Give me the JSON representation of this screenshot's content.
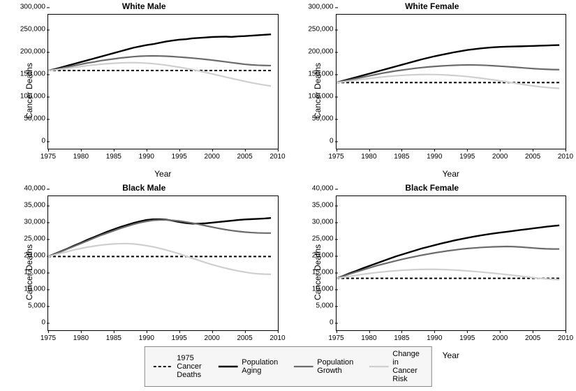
{
  "layout": {
    "rows": 2,
    "cols": 2,
    "background_color": "#ffffff",
    "title_fontsize": 12,
    "axis_label_fontsize": 12,
    "tick_fontsize": 10,
    "legend_fontsize": 11
  },
  "x": {
    "label": "Year",
    "lim": [
      1975,
      2010
    ],
    "ticks": [
      1975,
      1980,
      1985,
      1990,
      1995,
      2000,
      2005,
      2010
    ],
    "series_years": [
      1975,
      1976,
      1977,
      1978,
      1979,
      1980,
      1981,
      1982,
      1983,
      1984,
      1985,
      1986,
      1987,
      1988,
      1989,
      1990,
      1991,
      1992,
      1993,
      1994,
      1995,
      1996,
      1997,
      1998,
      1999,
      2000,
      2001,
      2002,
      2003,
      2004,
      2005,
      2006,
      2007,
      2008,
      2009
    ]
  },
  "series_defs": [
    {
      "key": "baseline",
      "label": "1975 Cancer Deaths",
      "color": "#000000",
      "width": 2,
      "dash": "4 3"
    },
    {
      "key": "aging",
      "label": "Population Aging",
      "color": "#000000",
      "width": 2.4,
      "dash": null
    },
    {
      "key": "growth",
      "label": "Population Growth",
      "color": "#6b6b6b",
      "width": 2.2,
      "dash": null
    },
    {
      "key": "risk_change",
      "label": "Change in Cancer Risk",
      "color": "#cfcfcf",
      "width": 2.2,
      "dash": null
    }
  ],
  "panels": [
    {
      "title": "White Male",
      "ylabel": "Cancer Deaths",
      "ylim": [
        0,
        300000
      ],
      "ytick_step": 50000,
      "series": {
        "baseline": 175000,
        "aging": [
          175000,
          178000,
          182000,
          186000,
          190000,
          194000,
          198000,
          202000,
          206000,
          210000,
          214000,
          218000,
          222000,
          226000,
          229000,
          232000,
          234000,
          237000,
          240000,
          242000,
          244000,
          245000,
          247000,
          248000,
          249000,
          250000,
          250500,
          250800,
          250200,
          251500,
          252000,
          253000,
          254000,
          255000,
          256000
        ],
        "growth": [
          175000,
          177000,
          180000,
          183000,
          186000,
          189000,
          192000,
          194000,
          197000,
          199000,
          201000,
          203000,
          204500,
          206000,
          207000,
          207500,
          207800,
          207500,
          207000,
          206200,
          205200,
          204100,
          202800,
          201500,
          200000,
          198300,
          196500,
          194600,
          192700,
          190800,
          189000,
          187700,
          186800,
          186300,
          186000
        ],
        "risk_change": [
          175000,
          176200,
          178000,
          180000,
          182000,
          184000,
          186000,
          187500,
          189000,
          190200,
          191200,
          192000,
          192500,
          192700,
          192300,
          191500,
          190300,
          188800,
          187000,
          184800,
          182400,
          179800,
          177000,
          174000,
          170800,
          167500,
          164100,
          160700,
          157300,
          154000,
          150800,
          147800,
          145000,
          142500,
          140200
        ]
      }
    },
    {
      "title": "White Female",
      "ylabel": "Cancer Deaths",
      "ylim": [
        0,
        300000
      ],
      "ytick_step": 50000,
      "series": {
        "baseline": 148000,
        "aging": [
          148000,
          152000,
          156000,
          160000,
          164000,
          168000,
          172000,
          176000,
          180000,
          184000,
          188000,
          192000,
          196000,
          200000,
          203500,
          207000,
          210000,
          213000,
          216000,
          218500,
          221000,
          222800,
          224500,
          225800,
          227000,
          227800,
          228400,
          228800,
          229100,
          229600,
          230000,
          230500,
          231000,
          231600,
          232000
        ],
        "growth": [
          148000,
          151000,
          154000,
          157000,
          160000,
          163000,
          166000,
          169000,
          171500,
          174000,
          176000,
          178000,
          180000,
          181500,
          183000,
          184200,
          185200,
          186000,
          186700,
          187200,
          187500,
          187400,
          187000,
          186400,
          185600,
          184700,
          183700,
          182600,
          181500,
          180400,
          179300,
          178400,
          177700,
          177200,
          177000
        ],
        "risk_change": [
          148000,
          149500,
          151500,
          153500,
          155500,
          157300,
          159000,
          160500,
          162000,
          163200,
          164200,
          165000,
          165600,
          166000,
          166100,
          165900,
          165500,
          164800,
          163900,
          162800,
          161400,
          159800,
          158000,
          156000,
          153900,
          151700,
          149400,
          147100,
          144800,
          142600,
          140500,
          138700,
          137200,
          136000,
          135000
        ]
      }
    },
    {
      "title": "Black Male",
      "ylabel": "Cancer Deaths",
      "ylim": [
        0,
        40000
      ],
      "ytick_step": 5000,
      "series": {
        "baseline": 22000,
        "aging": [
          22000,
          22800,
          23600,
          24400,
          25300,
          26100,
          27000,
          27800,
          28600,
          29400,
          30100,
          30800,
          31400,
          32000,
          32500,
          32900,
          33100,
          33100,
          33000,
          32700,
          32300,
          32000,
          31800,
          31800,
          31900,
          32100,
          32300,
          32500,
          32700,
          32900,
          33050,
          33150,
          33250,
          33350,
          33500
        ],
        "growth": [
          22000,
          22700,
          23500,
          24300,
          25100,
          25900,
          26700,
          27500,
          28300,
          29000,
          29700,
          30400,
          31000,
          31600,
          32100,
          32500,
          32800,
          32900,
          32900,
          32800,
          32600,
          32300,
          32000,
          31600,
          31200,
          30800,
          30400,
          30050,
          29750,
          29500,
          29300,
          29150,
          29050,
          29000,
          29000
        ],
        "risk_change": [
          22000,
          22500,
          23000,
          23500,
          24000,
          24400,
          24800,
          25100,
          25400,
          25600,
          25750,
          25850,
          25850,
          25750,
          25550,
          25250,
          24900,
          24450,
          23950,
          23400,
          22800,
          22150,
          21500,
          20850,
          20200,
          19600,
          19050,
          18550,
          18100,
          17700,
          17350,
          17050,
          16850,
          16750,
          16700
        ]
      }
    },
    {
      "title": "Black Female",
      "ylabel": "Cancer Deaths",
      "ylim": [
        0,
        40000
      ],
      "ytick_step": 5000,
      "series": {
        "baseline": 15500,
        "aging": [
          15500,
          16200,
          17000,
          17700,
          18500,
          19200,
          19900,
          20600,
          21300,
          22000,
          22600,
          23200,
          23800,
          24400,
          24900,
          25400,
          25900,
          26350,
          26800,
          27200,
          27600,
          27950,
          28300,
          28600,
          28900,
          29150,
          29400,
          29650,
          29900,
          30150,
          30400,
          30650,
          30900,
          31100,
          31300
        ],
        "growth": [
          15500,
          16100,
          16800,
          17400,
          18000,
          18600,
          19200,
          19700,
          20200,
          20700,
          21150,
          21600,
          22000,
          22400,
          22750,
          23100,
          23400,
          23700,
          23950,
          24200,
          24400,
          24550,
          24700,
          24800,
          24900,
          24950,
          25000,
          24950,
          24850,
          24700,
          24550,
          24400,
          24300,
          24250,
          24250
        ],
        "risk_change": [
          15500,
          15800,
          16100,
          16400,
          16700,
          16950,
          17200,
          17400,
          17600,
          17750,
          17900,
          18000,
          18100,
          18150,
          18180,
          18170,
          18130,
          18060,
          17960,
          17840,
          17700,
          17550,
          17380,
          17200,
          17010,
          16810,
          16600,
          16380,
          16150,
          15920,
          15700,
          15500,
          15330,
          15200,
          15100
        ]
      }
    }
  ],
  "legend_title": null
}
